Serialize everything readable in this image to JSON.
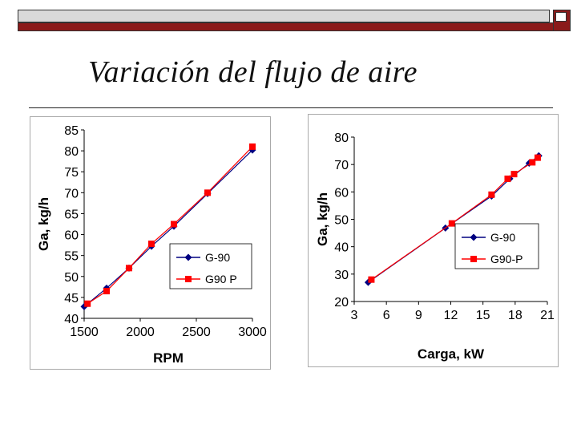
{
  "slide": {
    "title": "Variación del flujo de aire",
    "colors": {
      "bar_dark": "#8b1a1a",
      "bar_light": "#d9d9d9"
    }
  },
  "chart_data": [
    {
      "type": "line",
      "xlabel": "RPM",
      "ylabel": "Ga,  kg/h",
      "xlim": [
        1500,
        3000
      ],
      "ylim": [
        40,
        85
      ],
      "xticks": [
        "1500",
        "2000",
        "2500",
        "3000"
      ],
      "yticks": [
        "40",
        "45",
        "50",
        "55",
        "60",
        "65",
        "70",
        "75",
        "80",
        "85"
      ],
      "grid": false,
      "legend_position": "right",
      "series": [
        {
          "name": "G-90",
          "color": "#000080",
          "marker": "diamond",
          "x": [
            1500,
            1700,
            1900,
            2100,
            2300,
            2600,
            3000
          ],
          "y": [
            42.8,
            47.2,
            52.0,
            57.2,
            62.0,
            69.8,
            80.2
          ]
        },
        {
          "name": "G90 P",
          "color": "#ff0000",
          "marker": "square",
          "x": [
            1530,
            1700,
            1900,
            2100,
            2300,
            2600,
            3000
          ],
          "y": [
            43.5,
            46.5,
            52.0,
            57.8,
            62.5,
            70.0,
            81.0
          ]
        }
      ]
    },
    {
      "type": "line",
      "xlabel": "Carga, kW",
      "ylabel": "Ga, kg/h",
      "xlim": [
        3,
        21
      ],
      "ylim": [
        20,
        80
      ],
      "xticks": [
        "3",
        "6",
        "9",
        "12",
        "15",
        "18",
        "21"
      ],
      "yticks": [
        "20",
        "30",
        "40",
        "50",
        "60",
        "70",
        "80"
      ],
      "grid": false,
      "legend_position": "right",
      "series": [
        {
          "name": "G-90",
          "color": "#000080",
          "marker": "diamond",
          "x": [
            4.3,
            11.5,
            15.8,
            17.5,
            19.3,
            20.2
          ],
          "y": [
            27.0,
            46.8,
            58.5,
            64.8,
            70.5,
            73.2
          ]
        },
        {
          "name": "G90-P",
          "color": "#ff0000",
          "marker": "square",
          "x": [
            4.6,
            12.1,
            15.8,
            17.3,
            17.9,
            19.6,
            20.1
          ],
          "y": [
            28.0,
            48.5,
            59.0,
            64.8,
            66.5,
            70.8,
            72.5
          ]
        }
      ]
    }
  ]
}
